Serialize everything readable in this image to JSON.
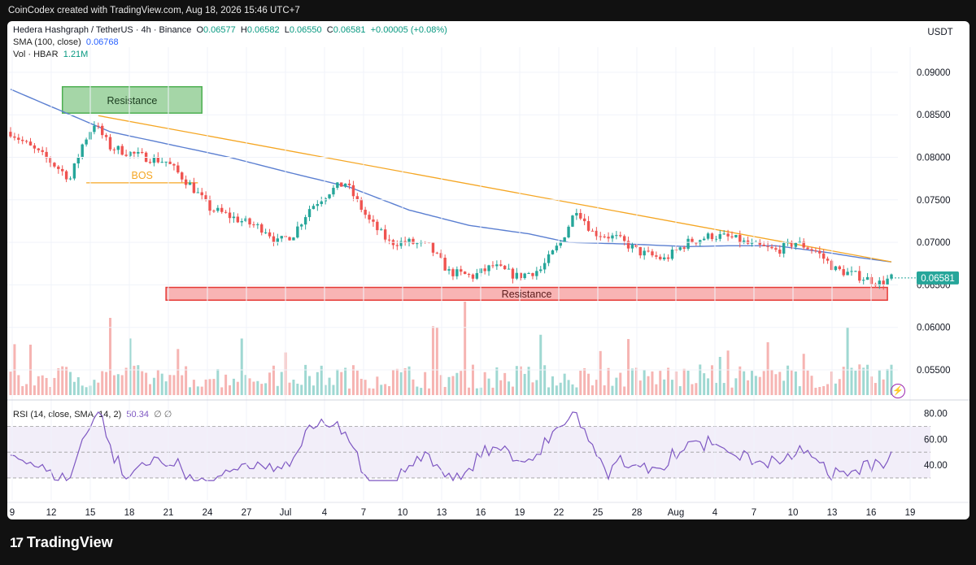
{
  "header": {
    "attribution": "CoinCodex created with TradingView.com, Aug 18, 2026 15:46 UTC+7"
  },
  "legend": {
    "symbol": "Hedera Hashgraph / TetherUS · 4h · Binance",
    "open_label": "O",
    "open": "0.06577",
    "high_label": "H",
    "high": "0.06582",
    "low_label": "L",
    "low": "0.06550",
    "close_label": "C",
    "close": "0.06581",
    "change": "+0.00005 (+0.08%)",
    "sma_label": "SMA (100, close)",
    "sma_value": "0.06768",
    "vol_label": "Vol · HBAR",
    "vol_value": "1.21M",
    "rsi_label": "RSI (14, close, SMA, 14, 2)",
    "rsi_value": "50.34",
    "rsi_extra": "∅ ∅"
  },
  "currency": "USDT",
  "current_price_tag": "0.06581",
  "annotations": {
    "resistance_top": "Resistance",
    "resistance_bottom": "Resistance",
    "bos": "BOS"
  },
  "footer": {
    "brand": "TradingView",
    "logo_mark": "17"
  },
  "colors": {
    "up": "#26a69a",
    "down": "#ef5350",
    "sma": "#5b7fd1",
    "trendline": "#f5a623",
    "rsi": "#7e57c2",
    "resistance_green": "#a5d6a7",
    "resistance_red": "#f8b4b4"
  },
  "chart_data": {
    "type": "candlestick",
    "price_axis": {
      "ylim": [
        0.0528,
        0.092
      ],
      "ticks": [
        "0.09000",
        "0.08500",
        "0.08000",
        "0.07500",
        "0.07000",
        "0.06500",
        "0.06000",
        "0.05500"
      ]
    },
    "rsi_axis": {
      "ylim": [
        18,
        86
      ],
      "ticks": [
        "80.00",
        "60.00",
        "40.00"
      ],
      "band": [
        30,
        70
      ],
      "midline": 50
    },
    "x_ticks": [
      "9",
      "12",
      "15",
      "18",
      "21",
      "24",
      "27",
      "Jul",
      "4",
      "7",
      "10",
      "13",
      "16",
      "19",
      "22",
      "25",
      "28",
      "Aug",
      "4",
      "7",
      "10",
      "13",
      "16",
      "19"
    ],
    "close_anchors": [
      [
        0,
        0.083
      ],
      [
        4,
        0.0815
      ],
      [
        10,
        0.0795
      ],
      [
        15,
        0.0775
      ],
      [
        18,
        0.0815
      ],
      [
        21,
        0.084
      ],
      [
        25,
        0.0812
      ],
      [
        32,
        0.0802
      ],
      [
        39,
        0.0795
      ],
      [
        45,
        0.0768
      ],
      [
        50,
        0.074
      ],
      [
        58,
        0.0725
      ],
      [
        64,
        0.0715
      ],
      [
        67,
        0.07
      ],
      [
        71,
        0.071
      ],
      [
        75,
        0.074
      ],
      [
        80,
        0.076
      ],
      [
        84,
        0.077
      ],
      [
        90,
        0.0725
      ],
      [
        95,
        0.07
      ],
      [
        100,
        0.07
      ],
      [
        105,
        0.0695
      ],
      [
        110,
        0.0665
      ],
      [
        116,
        0.066
      ],
      [
        121,
        0.0672
      ],
      [
        127,
        0.066
      ],
      [
        133,
        0.0668
      ],
      [
        138,
        0.07
      ],
      [
        142,
        0.074
      ],
      [
        146,
        0.0712
      ],
      [
        152,
        0.0705
      ],
      [
        158,
        0.0688
      ],
      [
        164,
        0.068
      ],
      [
        170,
        0.07
      ],
      [
        176,
        0.0708
      ],
      [
        181,
        0.0705
      ],
      [
        185,
        0.0698
      ],
      [
        192,
        0.069
      ],
      [
        197,
        0.07
      ],
      [
        202,
        0.069
      ],
      [
        207,
        0.0668
      ],
      [
        213,
        0.066
      ],
      [
        218,
        0.0652
      ],
      [
        221,
        0.0658
      ]
    ],
    "sma_anchors": [
      [
        0,
        0.088
      ],
      [
        10,
        0.086
      ],
      [
        25,
        0.083
      ],
      [
        40,
        0.0815
      ],
      [
        55,
        0.08
      ],
      [
        70,
        0.0782
      ],
      [
        85,
        0.0765
      ],
      [
        100,
        0.0738
      ],
      [
        115,
        0.072
      ],
      [
        130,
        0.071
      ],
      [
        140,
        0.07
      ],
      [
        155,
        0.0698
      ],
      [
        170,
        0.0695
      ],
      [
        180,
        0.0696
      ],
      [
        192,
        0.0696
      ],
      [
        205,
        0.0688
      ],
      [
        213,
        0.0682
      ],
      [
        221,
        0.0677
      ]
    ],
    "trendline": {
      "from": [
        22,
        0.0849
      ],
      "to": [
        221,
        0.0677
      ]
    },
    "bos_line": {
      "from": [
        19,
        0.077
      ],
      "to": [
        47,
        0.077
      ]
    },
    "resistance_top_zone": {
      "x": [
        13,
        48
      ],
      "price": [
        0.0852,
        0.0883
      ]
    },
    "resistance_bottom_zone": {
      "x": [
        39,
        220
      ],
      "price": [
        0.0632,
        0.0647
      ]
    },
    "series": [
      {
        "name": "SMA (100, close)",
        "role": "sma"
      },
      {
        "name": "Vol · HBAR",
        "role": "volume"
      },
      {
        "name": "RSI (14, close, SMA, 14, 2)",
        "role": "rsi"
      }
    ]
  }
}
